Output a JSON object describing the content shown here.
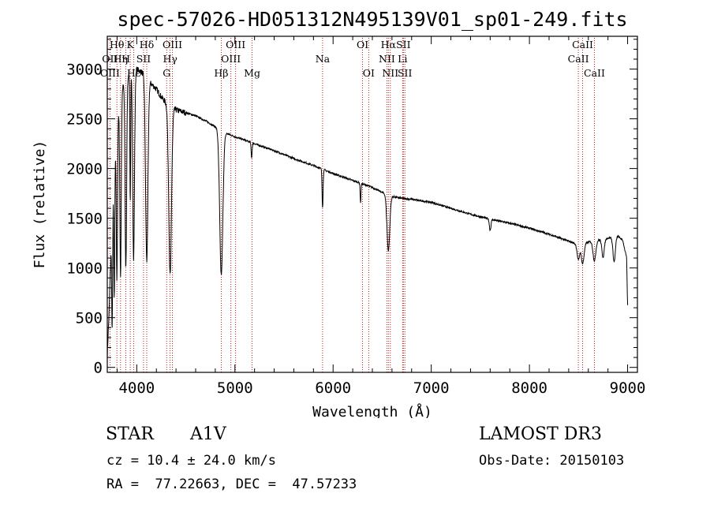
{
  "chart_data": {
    "type": "line",
    "title": "spec-57026-HD051312N495139V01_sp01-249.fits",
    "xlabel": "Wavelength (Å)",
    "ylabel": "Flux (relative)",
    "xlim": [
      3700,
      9100
    ],
    "ylim": [
      -50,
      3330
    ],
    "x_ticks": [
      4000,
      5000,
      6000,
      7000,
      8000,
      9000
    ],
    "y_ticks": [
      0,
      500,
      1000,
      1500,
      2000,
      2500,
      3000
    ],
    "x_ticks_minor_step": 200,
    "y_ticks_minor_step": 100,
    "series": [
      {
        "name": "spectrum",
        "continuum": [
          [
            3700,
            120
          ],
          [
            3720,
            600
          ],
          [
            3760,
            1900
          ],
          [
            3800,
            2500
          ],
          [
            3850,
            2800
          ],
          [
            3900,
            2930
          ],
          [
            3950,
            2980
          ],
          [
            4000,
            3000
          ],
          [
            4050,
            2970
          ],
          [
            4100,
            2920
          ],
          [
            4150,
            2850
          ],
          [
            4200,
            2800
          ],
          [
            4250,
            2720
          ],
          [
            4300,
            2660
          ],
          [
            4350,
            2620
          ],
          [
            4400,
            2590
          ],
          [
            4500,
            2560
          ],
          [
            4600,
            2530
          ],
          [
            4700,
            2480
          ],
          [
            4800,
            2420
          ],
          [
            4900,
            2360
          ],
          [
            5000,
            2320
          ],
          [
            5200,
            2250
          ],
          [
            5400,
            2180
          ],
          [
            5600,
            2100
          ],
          [
            5800,
            2030
          ],
          [
            6000,
            1950
          ],
          [
            6200,
            1880
          ],
          [
            6400,
            1810
          ],
          [
            6500,
            1760
          ],
          [
            6600,
            1720
          ],
          [
            6700,
            1700
          ],
          [
            6800,
            1690
          ],
          [
            7000,
            1660
          ],
          [
            7200,
            1600
          ],
          [
            7400,
            1540
          ],
          [
            7600,
            1490
          ],
          [
            7800,
            1450
          ],
          [
            8000,
            1400
          ],
          [
            8200,
            1340
          ],
          [
            8400,
            1270
          ],
          [
            8500,
            1230
          ],
          [
            8600,
            1260
          ],
          [
            8700,
            1280
          ],
          [
            8800,
            1300
          ],
          [
            8900,
            1320
          ],
          [
            8950,
            1280
          ],
          [
            8990,
            1100
          ],
          [
            9000,
            620
          ]
        ],
        "absorption_features": [
          {
            "center": 3750,
            "depth": 1200,
            "width": 5
          },
          {
            "center": 3771,
            "depth": 1400,
            "width": 5
          },
          {
            "center": 3798,
            "depth": 1600,
            "width": 6
          },
          {
            "center": 3835,
            "depth": 1800,
            "width": 7
          },
          {
            "center": 3889,
            "depth": 1900,
            "width": 8
          },
          {
            "center": 3934,
            "depth": 1300,
            "width": 4
          },
          {
            "center": 3968,
            "depth": 1900,
            "width": 9
          },
          {
            "center": 4102,
            "depth": 1850,
            "width": 12
          },
          {
            "center": 4340,
            "depth": 1700,
            "width": 14
          },
          {
            "center": 4861,
            "depth": 1450,
            "width": 16
          },
          {
            "center": 5170,
            "depth": 150,
            "width": 5
          },
          {
            "center": 5893,
            "depth": 380,
            "width": 5
          },
          {
            "center": 6280,
            "depth": 200,
            "width": 4
          },
          {
            "center": 6563,
            "depth": 560,
            "width": 14
          },
          {
            "center": 7600,
            "depth": 110,
            "width": 8
          },
          {
            "center": 8498,
            "depth": 150,
            "width": 12
          },
          {
            "center": 8542,
            "depth": 200,
            "width": 14
          },
          {
            "center": 8662,
            "depth": 200,
            "width": 14
          },
          {
            "center": 8750,
            "depth": 180,
            "width": 12
          },
          {
            "center": 8863,
            "depth": 250,
            "width": 12
          }
        ]
      }
    ],
    "reference_lines": [
      {
        "label": "Hδ",
        "wave": 4102,
        "row": 0
      },
      {
        "label": "OIII",
        "wave": 4363,
        "row": 0
      },
      {
        "label": "OIII",
        "wave": 5007,
        "row": 0
      },
      {
        "label": "OI",
        "wave": 6300,
        "row": 0
      },
      {
        "label": "Hα",
        "wave": 6563,
        "row": 0
      },
      {
        "label": "SII",
        "wave": 6716,
        "row": 0
      },
      {
        "label": "CaII",
        "wave": 8542,
        "row": 0
      },
      {
        "label": "Hθ",
        "wave": 3798,
        "row": 0
      },
      {
        "label": "K",
        "wave": 3934,
        "row": 0
      },
      {
        "label": "OII",
        "wave": 3727,
        "row": 1
      },
      {
        "label": "Hη",
        "wave": 3835,
        "row": 1
      },
      {
        "label": "H",
        "wave": 3889,
        "row": 1
      },
      {
        "label": "SII",
        "wave": 4069,
        "row": 1
      },
      {
        "label": "Hγ",
        "wave": 4340,
        "row": 1
      },
      {
        "label": "OIII",
        "wave": 4959,
        "row": 1
      },
      {
        "label": "Na",
        "wave": 5893,
        "row": 1
      },
      {
        "label": "NII",
        "wave": 6548,
        "row": 1
      },
      {
        "label": "Li",
        "wave": 6708,
        "row": 1
      },
      {
        "label": "CaII",
        "wave": 8498,
        "row": 1
      },
      {
        "label": "OIII",
        "wave": 3727,
        "row": 2
      },
      {
        "label": "Hε",
        "wave": 3970,
        "row": 2
      },
      {
        "label": "G",
        "wave": 4305,
        "row": 2
      },
      {
        "label": "Hβ",
        "wave": 4861,
        "row": 2
      },
      {
        "label": "Mg",
        "wave": 5175,
        "row": 2
      },
      {
        "label": "OI",
        "wave": 6363,
        "row": 2
      },
      {
        "label": "NII",
        "wave": 6583,
        "row": 2
      },
      {
        "label": "SII",
        "wave": 6731,
        "row": 2
      },
      {
        "label": "CaII",
        "wave": 8662,
        "row": 2
      }
    ]
  },
  "info": {
    "object_class": "STAR",
    "subclass": "A1V",
    "survey": "LAMOST DR3",
    "redshift": "cz = 10.4 ± 24.0 km/s",
    "obs_date": "Obs-Date: 20150103",
    "coords": "RA =  77.22663, DEC =  47.57233"
  },
  "colors": {
    "spectrum": "#000000",
    "reference_line": "#c00000",
    "frame": "#000000",
    "background": "#ffffff"
  }
}
